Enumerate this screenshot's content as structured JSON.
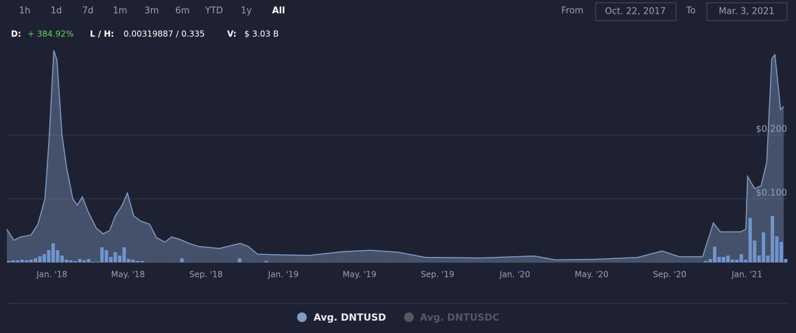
{
  "controls": {
    "ranges": [
      "1h",
      "1d",
      "7d",
      "1m",
      "3m",
      "6m",
      "YTD",
      "1y",
      "All"
    ],
    "active": 8,
    "from_label": "From",
    "from": "Oct. 22, 2017",
    "to_label": "To",
    "to": "Mar. 3, 2021"
  },
  "stats": {
    "d_label": "D:",
    "d": "+ 384.92%",
    "lh_label": "L / H:",
    "lh": "0.00319887 / 0.335",
    "v_label": "V:",
    "v": "$ 3.03 B"
  },
  "chart_data": {
    "type": "area",
    "x": [
      "2017-10-22",
      "2017-11-02",
      "2017-11-13",
      "2017-11-29",
      "2017-12-10",
      "2017-12-21",
      "2017-12-28",
      "2018-01-04",
      "2018-01-09",
      "2018-01-17",
      "2018-01-24",
      "2018-02-03",
      "2018-02-10",
      "2018-02-18",
      "2018-02-27",
      "2018-03-12",
      "2018-03-23",
      "2018-04-02",
      "2018-04-11",
      "2018-04-22",
      "2018-04-30",
      "2018-05-10",
      "2018-05-21",
      "2018-06-04",
      "2018-06-15",
      "2018-06-28",
      "2018-07-09",
      "2018-07-22",
      "2018-08-05",
      "2018-08-21",
      "2018-09-22",
      "2018-10-25",
      "2018-11-07",
      "2018-11-21",
      "2018-12-18",
      "2019-02-10",
      "2019-04-05",
      "2019-05-19",
      "2019-07-01",
      "2019-08-13",
      "2019-11-08",
      "2020-02-01",
      "2020-03-05",
      "2020-05-09",
      "2020-07-13",
      "2020-08-20",
      "2020-09-16",
      "2020-10-23",
      "2020-11-09",
      "2020-11-20",
      "2020-12-22",
      "2020-12-30",
      "2021-01-02",
      "2021-01-13",
      "2021-01-23",
      "2021-02-01",
      "2021-02-09",
      "2021-02-14",
      "2021-02-23",
      "2021-02-28"
    ],
    "series": [
      {
        "name": "Avg. DNTUSD",
        "color": "#7f9cc4",
        "values": [
          0.052,
          0.035,
          0.04,
          0.043,
          0.06,
          0.1,
          0.2,
          0.333,
          0.318,
          0.2,
          0.15,
          0.1,
          0.09,
          0.103,
          0.08,
          0.054,
          0.045,
          0.05,
          0.073,
          0.09,
          0.109,
          0.073,
          0.065,
          0.06,
          0.039,
          0.032,
          0.04,
          0.036,
          0.03,
          0.025,
          0.022,
          0.03,
          0.025,
          0.013,
          0.012,
          0.011,
          0.017,
          0.019,
          0.016,
          0.008,
          0.007,
          0.01,
          0.004,
          0.005,
          0.008,
          0.018,
          0.009,
          0.009,
          0.062,
          0.048,
          0.048,
          0.052,
          0.135,
          0.116,
          0.12,
          0.157,
          0.32,
          0.326,
          0.24,
          0.245
        ]
      }
    ],
    "hidden_series": [
      {
        "name": "Avg. DNTUSDC",
        "color": "#55585f"
      }
    ],
    "volume": {
      "type": "bar",
      "color": "#6f95cc",
      "ylim": [
        0,
        100
      ],
      "x": [
        "2017-10-25",
        "2017-11-01",
        "2017-11-08",
        "2017-11-15",
        "2017-11-22",
        "2017-11-29",
        "2017-12-06",
        "2017-12-13",
        "2017-12-20",
        "2017-12-27",
        "2018-01-03",
        "2018-01-10",
        "2018-01-17",
        "2018-01-24",
        "2018-01-31",
        "2018-02-07",
        "2018-02-14",
        "2018-02-21",
        "2018-02-28",
        "2018-03-07",
        "2018-03-14",
        "2018-03-21",
        "2018-03-28",
        "2018-04-04",
        "2018-04-11",
        "2018-04-18",
        "2018-04-25",
        "2018-05-02",
        "2018-05-09",
        "2018-05-16",
        "2018-05-23",
        "2018-07-25",
        "2018-10-24",
        "2018-12-05",
        "2020-10-28",
        "2020-11-04",
        "2020-11-11",
        "2020-11-18",
        "2020-11-25",
        "2020-12-02",
        "2020-12-09",
        "2020-12-16",
        "2020-12-23",
        "2020-12-30",
        "2021-01-06",
        "2021-01-13",
        "2021-01-20",
        "2021-01-27",
        "2021-02-03",
        "2021-02-10",
        "2021-02-17",
        "2021-02-24",
        "2021-03-03"
      ],
      "values": [
        2,
        3,
        3,
        4,
        3,
        4,
        6,
        9,
        12,
        18,
        28,
        18,
        10,
        4,
        3,
        2,
        5,
        3,
        5,
        1,
        1,
        22,
        18,
        8,
        15,
        10,
        22,
        5,
        4,
        2,
        2,
        6,
        6,
        2,
        2,
        5,
        23,
        8,
        8,
        10,
        4,
        4,
        12,
        4,
        65,
        32,
        10,
        44,
        10,
        68,
        38,
        30,
        5
      ]
    },
    "xlim": [
      "2017-10-22",
      "2021-03-03"
    ],
    "xticks": [
      {
        "value": "2018-01-01",
        "label": "Jan. '18"
      },
      {
        "value": "2018-05-01",
        "label": "May. '18"
      },
      {
        "value": "2018-09-01",
        "label": "Sep. '18"
      },
      {
        "value": "2019-01-01",
        "label": "Jan. '19"
      },
      {
        "value": "2019-05-01",
        "label": "May. '19"
      },
      {
        "value": "2019-09-01",
        "label": "Sep. '19"
      },
      {
        "value": "2020-01-01",
        "label": "Jan. '20"
      },
      {
        "value": "2020-05-01",
        "label": "May. '20"
      },
      {
        "value": "2020-09-01",
        "label": "Sep. '20"
      },
      {
        "value": "2021-01-01",
        "label": "Jan. '21"
      }
    ],
    "ylim": [
      0,
      0.34
    ],
    "yticks": [
      {
        "value": 0.1,
        "label": "$0.100"
      },
      {
        "value": 0.2,
        "label": "$0.200"
      }
    ],
    "grid": true
  }
}
